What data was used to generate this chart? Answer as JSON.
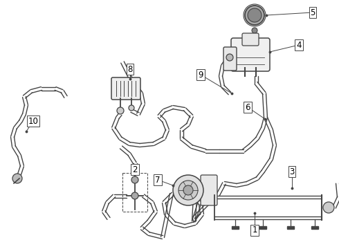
{
  "bg_color": "#ffffff",
  "line_color": "#444444",
  "text_color": "#000000",
  "label_fontsize": 8.5,
  "fig_width": 4.9,
  "fig_height": 3.6,
  "dpi": 100
}
